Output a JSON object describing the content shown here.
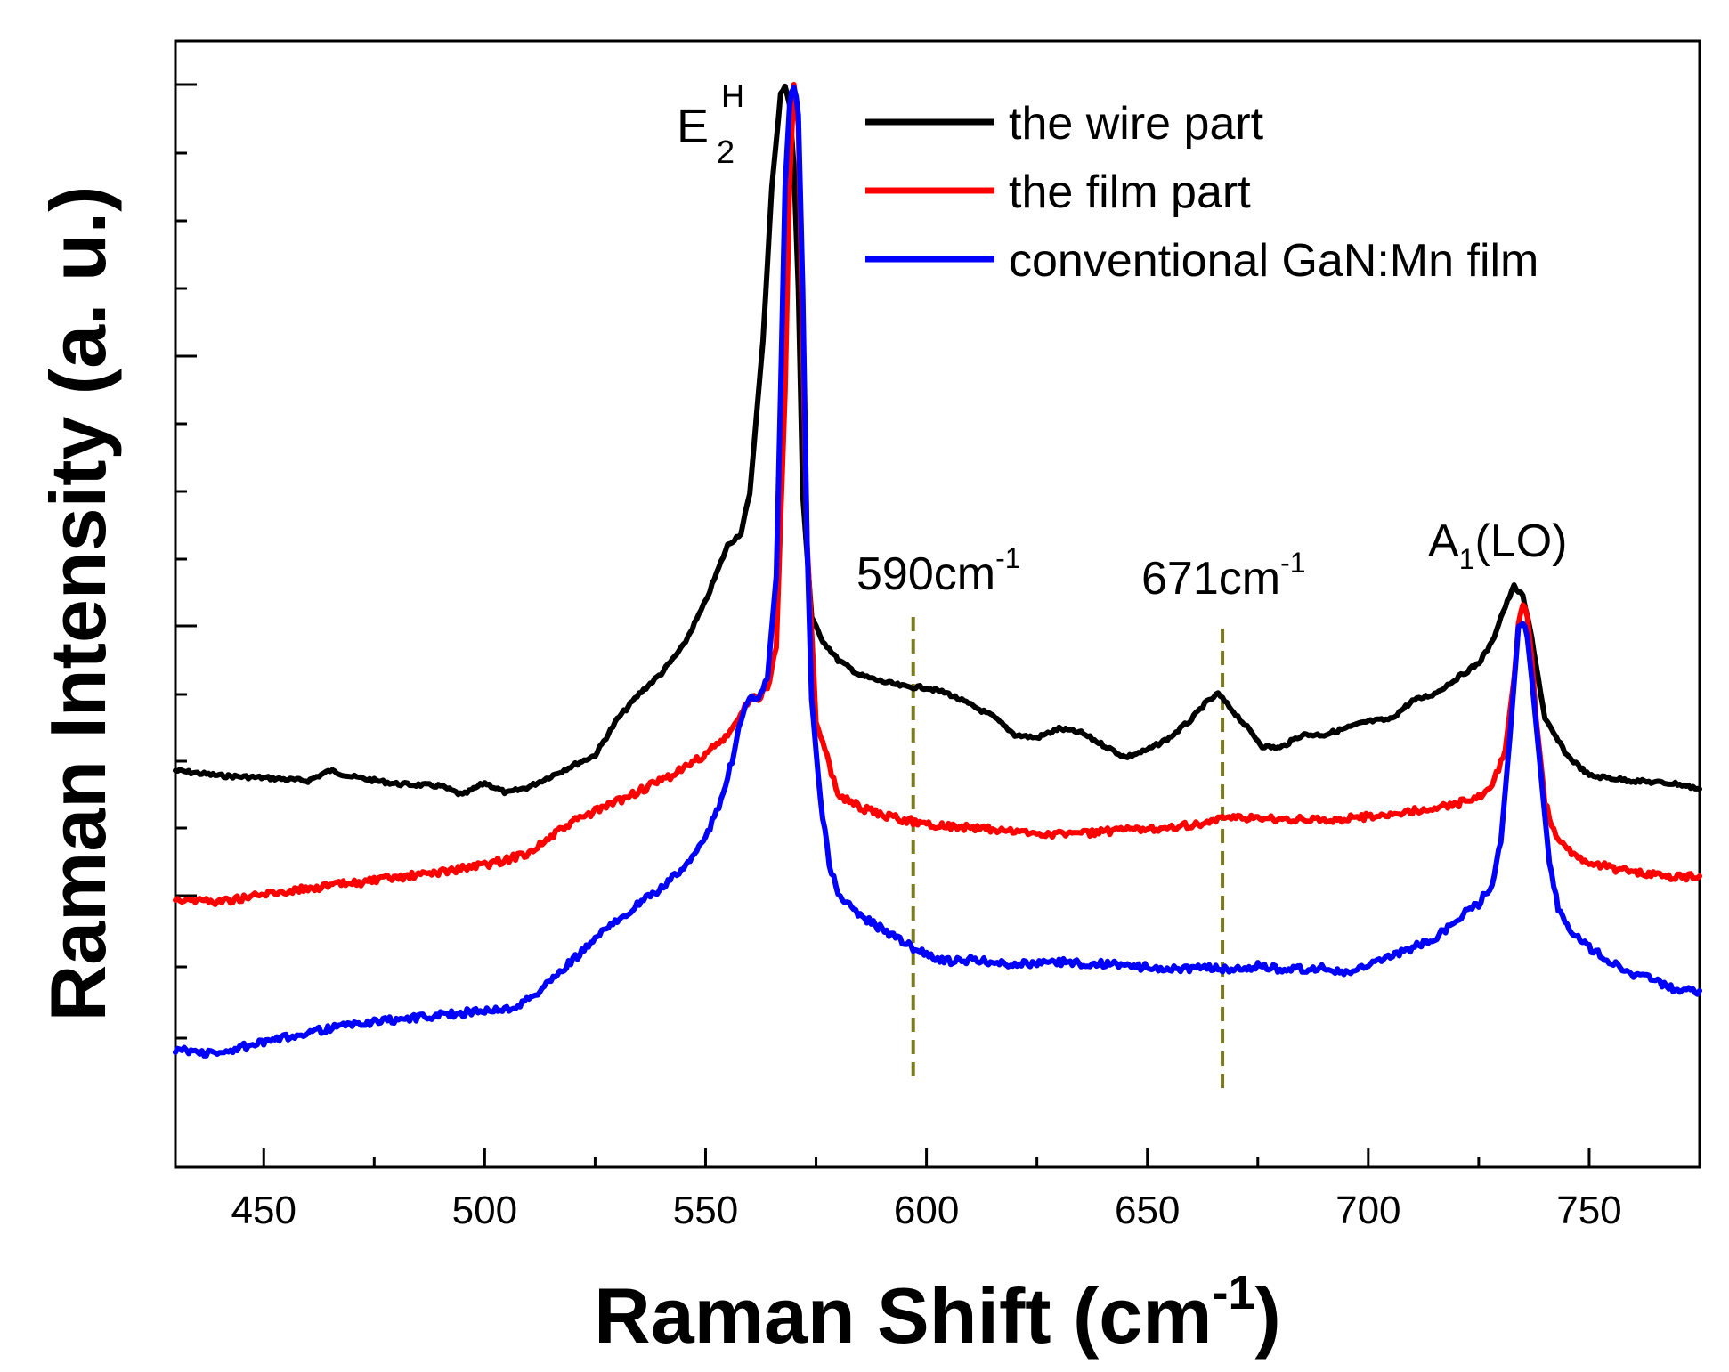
{
  "chart_data": {
    "type": "line",
    "title": "",
    "xlabel": "Raman Shift (cm",
    "xlabel_sup": "-1",
    "xlabel_close": ")",
    "ylabel": "Raman Intensity (a. u.)",
    "xlim": [
      430,
      775
    ],
    "ylim": [
      0,
      100
    ],
    "x_ticks": [
      450,
      500,
      550,
      600,
      650,
      700,
      750
    ],
    "x_tick_labels": [
      "450",
      "500",
      "550",
      "600",
      "650",
      "700",
      "750"
    ],
    "y_tick_labels_visible": false,
    "series": [
      {
        "name": "the wire part",
        "color": "#000000",
        "points": [
          [
            430,
            33
          ],
          [
            440,
            32.5
          ],
          [
            450,
            32.3
          ],
          [
            460,
            32
          ],
          [
            465,
            33
          ],
          [
            470,
            32.4
          ],
          [
            480,
            31.7
          ],
          [
            490,
            31.5
          ],
          [
            495,
            30.6
          ],
          [
            500,
            31.8
          ],
          [
            505,
            30.8
          ],
          [
            510,
            31.4
          ],
          [
            520,
            33.5
          ],
          [
            525,
            34.5
          ],
          [
            530,
            38
          ],
          [
            535,
            40.5
          ],
          [
            540,
            42.5
          ],
          [
            545,
            45.2
          ],
          [
            550,
            49.5
          ],
          [
            555,
            55
          ],
          [
            558,
            56.2
          ],
          [
            560,
            60
          ],
          [
            563,
            75
          ],
          [
            565,
            90
          ],
          [
            567,
            99
          ],
          [
            568,
            100
          ],
          [
            569,
            98
          ],
          [
            570,
            92
          ],
          [
            571,
            80
          ],
          [
            572,
            60
          ],
          [
            574,
            48
          ],
          [
            576,
            46
          ],
          [
            580,
            43.8
          ],
          [
            585,
            42.3
          ],
          [
            590,
            41.7
          ],
          [
            595,
            41.2
          ],
          [
            600,
            41.1
          ],
          [
            605,
            40.5
          ],
          [
            610,
            39.4
          ],
          [
            615,
            38.3
          ],
          [
            620,
            36.5
          ],
          [
            625,
            36.2
          ],
          [
            630,
            37.1
          ],
          [
            635,
            36.7
          ],
          [
            640,
            35.5
          ],
          [
            645,
            34.3
          ],
          [
            650,
            35
          ],
          [
            655,
            36.2
          ],
          [
            660,
            38
          ],
          [
            663,
            39.5
          ],
          [
            666,
            40.5
          ],
          [
            670,
            38.5
          ],
          [
            673,
            37
          ],
          [
            676,
            35.4
          ],
          [
            680,
            35.2
          ],
          [
            685,
            36.5
          ],
          [
            690,
            36.5
          ],
          [
            700,
            37.8
          ],
          [
            705,
            38
          ],
          [
            710,
            39.8
          ],
          [
            715,
            40.5
          ],
          [
            720,
            42
          ],
          [
            725,
            43.5
          ],
          [
            728,
            45.5
          ],
          [
            730,
            48
          ],
          [
            733,
            51
          ],
          [
            735,
            50
          ],
          [
            737,
            46
          ],
          [
            740,
            38
          ],
          [
            745,
            34.5
          ],
          [
            750,
            32.5
          ],
          [
            760,
            32
          ],
          [
            770,
            31.7
          ],
          [
            775,
            31.2
          ]
        ]
      },
      {
        "name": "the film part",
        "color": "#ff0000",
        "points": [
          [
            430,
            20.5
          ],
          [
            440,
            20.2
          ],
          [
            450,
            20.9
          ],
          [
            460,
            21.5
          ],
          [
            470,
            22
          ],
          [
            480,
            22.5
          ],
          [
            490,
            23.1
          ],
          [
            500,
            23.8
          ],
          [
            505,
            24.3
          ],
          [
            510,
            25
          ],
          [
            515,
            26.5
          ],
          [
            520,
            28
          ],
          [
            530,
            30
          ],
          [
            540,
            32
          ],
          [
            545,
            33.2
          ],
          [
            550,
            34.6
          ],
          [
            555,
            36.4
          ],
          [
            558,
            38.4
          ],
          [
            560,
            40
          ],
          [
            562,
            40.2
          ],
          [
            564,
            41
          ],
          [
            566,
            45
          ],
          [
            568,
            70
          ],
          [
            569,
            90
          ],
          [
            570,
            100
          ],
          [
            571,
            96
          ],
          [
            572,
            75
          ],
          [
            573,
            55
          ],
          [
            575,
            38
          ],
          [
            578,
            33.5
          ],
          [
            580,
            30.7
          ],
          [
            585,
            29.4
          ],
          [
            590,
            28.6
          ],
          [
            595,
            28.2
          ],
          [
            600,
            27.8
          ],
          [
            610,
            27.4
          ],
          [
            620,
            27
          ],
          [
            630,
            26.8
          ],
          [
            640,
            27
          ],
          [
            650,
            27.3
          ],
          [
            660,
            27.7
          ],
          [
            670,
            28.4
          ],
          [
            680,
            28.3
          ],
          [
            690,
            28.1
          ],
          [
            700,
            28.5
          ],
          [
            710,
            29
          ],
          [
            720,
            29.7
          ],
          [
            726,
            30.7
          ],
          [
            728,
            31.5
          ],
          [
            731,
            35
          ],
          [
            733,
            42
          ],
          [
            734,
            47
          ],
          [
            735,
            49.5
          ],
          [
            736,
            48
          ],
          [
            737,
            44
          ],
          [
            738,
            38
          ],
          [
            740,
            30
          ],
          [
            742,
            27
          ],
          [
            745,
            25.2
          ],
          [
            750,
            24
          ],
          [
            760,
            23
          ],
          [
            770,
            22.6
          ],
          [
            775,
            22.7
          ]
        ]
      },
      {
        "name": "conventional GaN:Mn film",
        "color": "#0000ff",
        "points": [
          [
            430,
            5.8
          ],
          [
            435,
            5.5
          ],
          [
            440,
            5.3
          ],
          [
            445,
            6
          ],
          [
            450,
            6.4
          ],
          [
            455,
            6.9
          ],
          [
            460,
            7.5
          ],
          [
            465,
            7.8
          ],
          [
            470,
            8.2
          ],
          [
            480,
            8.7
          ],
          [
            490,
            9.1
          ],
          [
            500,
            9.6
          ],
          [
            505,
            9.7
          ],
          [
            510,
            10.6
          ],
          [
            515,
            12.5
          ],
          [
            520,
            14.5
          ],
          [
            530,
            18.5
          ],
          [
            540,
            21.5
          ],
          [
            545,
            23.5
          ],
          [
            550,
            26.5
          ],
          [
            553,
            29.5
          ],
          [
            556,
            34
          ],
          [
            558,
            38
          ],
          [
            560,
            40
          ],
          [
            562,
            40.2
          ],
          [
            564,
            42
          ],
          [
            566,
            52
          ],
          [
            567,
            70
          ],
          [
            568,
            90
          ],
          [
            569,
            98
          ],
          [
            570,
            100
          ],
          [
            571,
            97
          ],
          [
            572,
            80
          ],
          [
            573,
            55
          ],
          [
            574,
            40
          ],
          [
            576,
            30
          ],
          [
            578,
            24
          ],
          [
            580,
            20.8
          ],
          [
            585,
            18.8
          ],
          [
            590,
            17.5
          ],
          [
            595,
            16.2
          ],
          [
            600,
            15
          ],
          [
            605,
            14.4
          ],
          [
            610,
            14.5
          ],
          [
            615,
            14.3
          ],
          [
            620,
            14.1
          ],
          [
            630,
            14.3
          ],
          [
            640,
            14.1
          ],
          [
            650,
            13.8
          ],
          [
            660,
            13.6
          ],
          [
            665,
            13.8
          ],
          [
            670,
            13.5
          ],
          [
            675,
            13.9
          ],
          [
            680,
            13.6
          ],
          [
            690,
            13.7
          ],
          [
            695,
            13.2
          ],
          [
            700,
            13.9
          ],
          [
            705,
            14.8
          ],
          [
            710,
            15.7
          ],
          [
            715,
            16.5
          ],
          [
            720,
            18.5
          ],
          [
            725,
            20
          ],
          [
            728,
            22
          ],
          [
            730,
            26
          ],
          [
            732,
            36
          ],
          [
            734,
            47
          ],
          [
            735,
            47.5
          ],
          [
            736,
            46
          ],
          [
            737,
            42
          ],
          [
            739,
            33
          ],
          [
            741,
            24
          ],
          [
            743,
            19.5
          ],
          [
            745,
            17.8
          ],
          [
            750,
            15.7
          ],
          [
            755,
            14.3
          ],
          [
            760,
            13.1
          ],
          [
            765,
            12.5
          ],
          [
            770,
            11.5
          ],
          [
            775,
            11.5
          ]
        ]
      }
    ],
    "legend": {
      "placement": "top-right",
      "entries": [
        "the wire part",
        "the film part",
        "conventional GaN:Mn film"
      ]
    },
    "annotations": {
      "e2h": {
        "main": "E",
        "sub": "2",
        "sup": "H"
      },
      "peak590": {
        "main": "590cm",
        "sup": "-1",
        "x": 597
      },
      "peak671": {
        "main": "671cm",
        "sup": "-1",
        "x": 667
      },
      "a1lo": {
        "main": "A",
        "sub": "1",
        "rest": "(LO)"
      },
      "dashed_line_color": "#7a7a1f"
    }
  }
}
